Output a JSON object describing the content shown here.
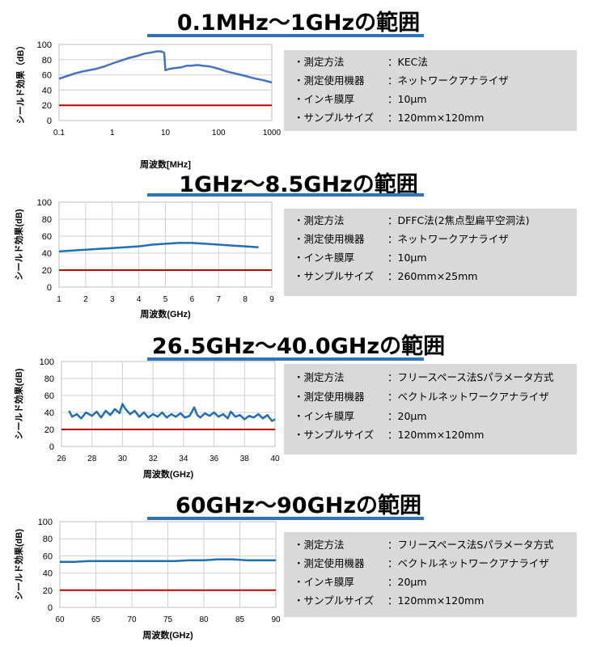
{
  "sections": [
    {
      "title": "0.1MHz～1GHzの範囲",
      "info": [
        {
          "label": "・測定方法",
          "value": "：KEC法"
        },
        {
          "label": "・測定使用機器",
          "value": "：ネットワークアナライザ"
        },
        {
          "label": "・インキ膜厚",
          "value": "：10μm"
        },
        {
          "label": "・サンプルサイズ",
          "value": "：120mm×120mm"
        }
      ]
    },
    {
      "title": "1GHz～8.5GHzの範囲",
      "info": [
        {
          "label": "・測定方法",
          "value": "：DFFC法(2焦点型扁平空洞法)"
        },
        {
          "label": "・測定使用機器",
          "value": "：ネットワークアナライザ"
        },
        {
          "label": "・インキ膜厚",
          "value": "：10μm"
        },
        {
          "label": "・サンプルサイズ",
          "value": "：260mm×25mm"
        }
      ]
    },
    {
      "title": "26.5GHz～40.0GHzの範囲",
      "info": [
        {
          "label": "・測定方法",
          "value": "：フリースペース法Sパラメータ方式"
        },
        {
          "label": "・測定使用機器",
          "value": "：ベクトルネットワークアナライザ"
        },
        {
          "label": "・インキ膜厚",
          "value": "：20μm"
        },
        {
          "label": "・サンプルサイズ",
          "value": "：120mm×120mm"
        }
      ]
    },
    {
      "title": "60GHz～90GHzの範囲",
      "info": [
        {
          "label": "・測定方法",
          "value": "：フリースペース法Sパラメータ方式"
        },
        {
          "label": "・測定使用機器",
          "value": "：ベクトルネットワークアナライザ"
        },
        {
          "label": "・インキ膜厚",
          "value": "：20μm"
        },
        {
          "label": "・サンプルサイズ",
          "value": "：120mm×120mm"
        }
      ]
    }
  ],
  "chart_data": [
    {
      "type": "line",
      "xlabel": "周波数[MHz]",
      "ylabel": "シールド効果（dB）",
      "xscale": "log",
      "xlim": [
        0.1,
        1000
      ],
      "ylim": [
        0,
        100
      ],
      "xticks": [
        0.1,
        1,
        10,
        100,
        1000
      ],
      "xtick_labels": [
        "0.1",
        "1",
        "10",
        "100",
        "1000"
      ],
      "yticks": [
        0,
        20,
        40,
        60,
        80,
        100
      ],
      "grid": "horizontal",
      "series_color": "#4472c4",
      "reference_color": "#c00000",
      "reference_y": 20,
      "series": [
        {
          "x": [
            0.1,
            0.15,
            0.2,
            0.3,
            0.5,
            0.7,
            1,
            1.5,
            2,
            3,
            4,
            5,
            6,
            7,
            8,
            9,
            9.5,
            10,
            12,
            15,
            20,
            25,
            30,
            40,
            50,
            70,
            100,
            150,
            200,
            300,
            500,
            700,
            1000
          ],
          "y": [
            55,
            59,
            62,
            65,
            68,
            71,
            75,
            79,
            82,
            85,
            88,
            89,
            90,
            91,
            91,
            90,
            89,
            66,
            68,
            69,
            70,
            72,
            72,
            73,
            72,
            71,
            68,
            64,
            62,
            59,
            55,
            53,
            50
          ]
        }
      ]
    },
    {
      "type": "line",
      "xlabel": "周波数(GHz)",
      "ylabel": "シールド効果(dB)",
      "xlim": [
        1,
        9
      ],
      "ylim": [
        0,
        100
      ],
      "xticks": [
        1,
        2,
        3,
        4,
        5,
        6,
        7,
        8,
        9
      ],
      "yticks": [
        0,
        20,
        40,
        60,
        80,
        100
      ],
      "grid": "both",
      "series_color": "#1f6fb5",
      "reference_color": "#c00000",
      "reference_y": 20,
      "series": [
        {
          "x": [
            1,
            2,
            3,
            4,
            4.5,
            5,
            5.5,
            5.8,
            6,
            6.5,
            7,
            7.5,
            8,
            8.5
          ],
          "y": [
            42,
            44,
            46,
            48,
            50,
            51,
            52,
            52,
            52,
            51,
            50,
            49,
            48,
            47
          ]
        }
      ]
    },
    {
      "type": "line",
      "xlabel": "周波数(GHz)",
      "ylabel": "シールド効果(dB)",
      "xlim": [
        26,
        40
      ],
      "ylim": [
        0,
        100
      ],
      "xticks": [
        26,
        28,
        30,
        32,
        34,
        36,
        38,
        40
      ],
      "yticks": [
        0,
        20,
        40,
        60,
        80,
        100
      ],
      "grid": "both",
      "series_color": "#1f6fb5",
      "reference_color": "#c00000",
      "reference_y": 20,
      "series": [
        {
          "x": [
            26.5,
            26.7,
            27,
            27.3,
            27.6,
            28,
            28.3,
            28.6,
            28.9,
            29.2,
            29.5,
            29.8,
            30,
            30.2,
            30.5,
            30.8,
            31.1,
            31.4,
            31.7,
            32,
            32.3,
            32.6,
            32.9,
            33.2,
            33.5,
            33.8,
            34.1,
            34.4,
            34.7,
            34.9,
            35.1,
            35.4,
            35.7,
            36,
            36.3,
            36.6,
            36.9,
            37.1,
            37.4,
            37.7,
            38,
            38.3,
            38.6,
            38.9,
            39.2,
            39.5,
            39.8,
            40
          ],
          "y": [
            42,
            35,
            38,
            33,
            40,
            36,
            41,
            34,
            42,
            37,
            44,
            39,
            50,
            44,
            38,
            42,
            35,
            40,
            34,
            38,
            35,
            40,
            34,
            38,
            35,
            39,
            34,
            36,
            46,
            37,
            34,
            39,
            36,
            40,
            35,
            38,
            33,
            41,
            35,
            37,
            32,
            36,
            34,
            38,
            33,
            37,
            30,
            32
          ]
        }
      ]
    },
    {
      "type": "line",
      "xlabel": "周波数(GHz)",
      "ylabel": "シールド効果(dB)",
      "xlim": [
        60,
        90
      ],
      "ylim": [
        0,
        100
      ],
      "xticks": [
        60,
        65,
        70,
        75,
        80,
        85,
        90
      ],
      "yticks": [
        0,
        20,
        40,
        60,
        80,
        100
      ],
      "grid": "both",
      "series_color": "#1f6fb5",
      "reference_color": "#c00000",
      "reference_y": 20,
      "series": [
        {
          "x": [
            60,
            62,
            64,
            66,
            68,
            70,
            72,
            74,
            76,
            78,
            80,
            82,
            84,
            86,
            88,
            90
          ],
          "y": [
            53,
            53,
            54,
            54,
            54,
            54,
            54,
            54,
            54,
            55,
            55,
            56,
            56,
            55,
            55,
            55
          ]
        }
      ]
    }
  ]
}
